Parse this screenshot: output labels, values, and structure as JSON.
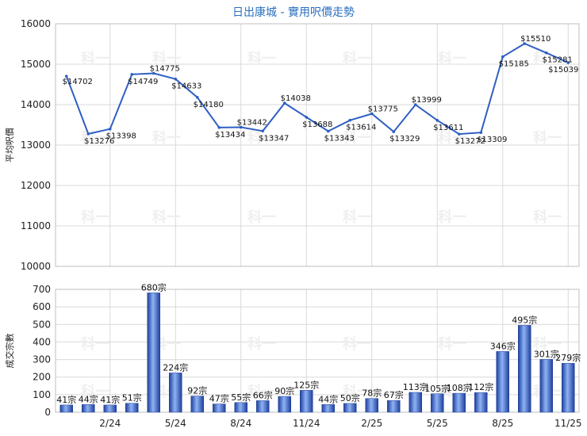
{
  "chart_data": [
    {
      "type": "line",
      "title": "日出康城 - 實用呎價走勢",
      "ylabel": "平均呎價",
      "ylim": [
        10000,
        16000
      ],
      "yticks": [
        10000,
        11000,
        12000,
        13000,
        14000,
        15000,
        16000
      ],
      "values": [
        14702,
        13276,
        13398,
        14749,
        14775,
        14633,
        14180,
        13434,
        13442,
        13347,
        14038,
        13688,
        13343,
        13614,
        13775,
        13329,
        13999,
        13611,
        13272,
        13309,
        15185,
        15510,
        15281,
        15039
      ],
      "value_labels": [
        "$14702",
        "$13276",
        "$13398",
        "$14749",
        "$14775",
        "$14633",
        "$14180",
        "$13434",
        "$13442",
        "$13347",
        "$14038",
        "$13688",
        "$13343",
        "$13614",
        "$13775",
        "$13329",
        "$13999",
        "$13611",
        "$13272",
        "$13309",
        "$15185",
        "$15510",
        "$15281",
        "$15039"
      ],
      "grid": true
    },
    {
      "type": "bar",
      "ylabel": "成交宗數",
      "ylim": [
        0,
        700
      ],
      "yticks": [
        0,
        100,
        200,
        300,
        400,
        500,
        600,
        700
      ],
      "values": [
        41,
        44,
        41,
        51,
        680,
        224,
        92,
        47,
        55,
        66,
        90,
        125,
        44,
        50,
        78,
        67,
        113,
        105,
        108,
        112,
        346,
        495,
        301,
        279
      ],
      "value_labels": [
        "41宗",
        "44宗",
        "41宗",
        "51宗",
        "680宗",
        "224宗",
        "92宗",
        "47宗",
        "55宗",
        "66宗",
        "90宗",
        "125宗",
        "44宗",
        "50宗",
        "78宗",
        "67宗",
        "113宗",
        "105宗",
        "108宗",
        "112宗",
        "346宗",
        "495宗",
        "301宗",
        "279宗"
      ],
      "x_tick_labels": [
        {
          "index": 2,
          "label": "2/24"
        },
        {
          "index": 5,
          "label": "5/24"
        },
        {
          "index": 8,
          "label": "8/24"
        },
        {
          "index": 11,
          "label": "11/24"
        },
        {
          "index": 14,
          "label": "2/25"
        },
        {
          "index": 17,
          "label": "5/25"
        },
        {
          "index": 20,
          "label": "8/25"
        },
        {
          "index": 23,
          "label": "11/25"
        }
      ],
      "grid": true,
      "bar_color": "#3f6fd6"
    }
  ],
  "watermark": "科一"
}
